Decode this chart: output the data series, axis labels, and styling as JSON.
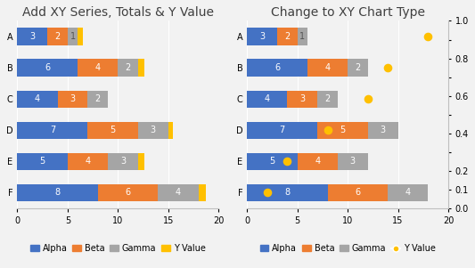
{
  "title1": "Add XY Series, Totals & Y Value",
  "title2": "Change to XY Chart Type",
  "categories": [
    "A",
    "B",
    "C",
    "D",
    "E",
    "F"
  ],
  "alpha": [
    3,
    6,
    4,
    7,
    5,
    8
  ],
  "beta": [
    2,
    4,
    3,
    5,
    4,
    6
  ],
  "gamma": [
    1,
    2,
    2,
    3,
    3,
    4
  ],
  "y_value": [
    0.9,
    0.7,
    0.6,
    0.4,
    0.2,
    0.1
  ],
  "color_alpha": "#4472C4",
  "color_beta": "#ED7D31",
  "color_gamma": "#A5A5A5",
  "color_yvalue": "#FFC000",
  "xlim": [
    0,
    20
  ],
  "bg_color": "#F2F2F2",
  "text_color": "#404040",
  "bar_text_fontsize": 7,
  "title_fontsize": 10,
  "label_fontsize": 7,
  "legend_fontsize": 7,
  "dot_x_values": [
    18.0,
    14.0,
    12.0,
    8.0,
    4.0,
    2.0
  ],
  "yval_bar_widths": [
    0.5,
    0.6,
    0.0,
    0.5,
    0.6,
    0.7
  ]
}
